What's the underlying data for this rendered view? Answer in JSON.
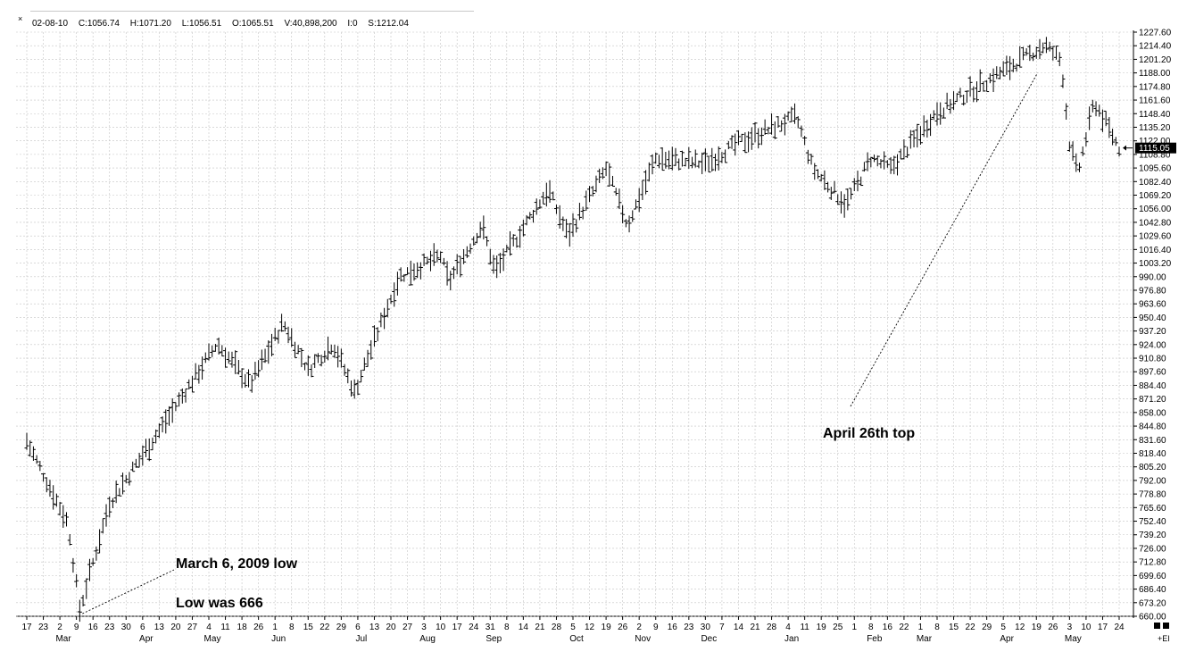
{
  "header": {
    "close_glyph": "×",
    "date": "02-08-10",
    "close": "C:1056.74",
    "high": "H:1071.20",
    "low": "L:1056.51",
    "open": "O:1065.51",
    "volume": "V:40,898,200",
    "interest": "I:0",
    "symbol_value": "S:1212.04"
  },
  "price_marker": "1115.05",
  "corner_label": "+EI",
  "chart_data": {
    "type": "ohlc",
    "ylim": [
      660,
      1227.6
    ],
    "y_ticks": [
      "1227.60",
      "1214.40",
      "1201.20",
      "1188.00",
      "1174.80",
      "1161.60",
      "1148.40",
      "1135.20",
      "1122.00",
      "1108.80",
      "1095.60",
      "1082.40",
      "1069.20",
      "1056.00",
      "1042.80",
      "1029.60",
      "1016.40",
      "1003.20",
      "990.00",
      "976.80",
      "963.60",
      "950.40",
      "937.20",
      "924.00",
      "910.80",
      "897.60",
      "884.40",
      "871.20",
      "858.00",
      "844.80",
      "831.60",
      "818.40",
      "805.20",
      "792.00",
      "778.80",
      "765.60",
      "752.40",
      "739.20",
      "726.00",
      "712.80",
      "699.60",
      "686.40",
      "673.20",
      "660.00"
    ],
    "x_ticks": [
      "17",
      "23",
      "2",
      "9",
      "16",
      "23",
      "30",
      "6",
      "13",
      "20",
      "27",
      "4",
      "11",
      "18",
      "26",
      "1",
      "8",
      "15",
      "22",
      "29",
      "6",
      "13",
      "20",
      "27",
      "3",
      "10",
      "17",
      "24",
      "31",
      "8",
      "14",
      "21",
      "28",
      "5",
      "12",
      "19",
      "26",
      "2",
      "9",
      "16",
      "23",
      "30",
      "7",
      "14",
      "21",
      "28",
      "4",
      "11",
      "19",
      "25",
      "1",
      "8",
      "16",
      "22",
      "1",
      "8",
      "15",
      "22",
      "29",
      "5",
      "12",
      "19",
      "26",
      "3",
      "10",
      "17",
      "24"
    ],
    "month_labels": [
      "Mar",
      "Apr",
      "May",
      "Jun",
      "Jul",
      "Aug",
      "Sep",
      "Oct",
      "Nov",
      "Dec",
      "Jan",
      "Feb",
      "Mar",
      "Apr",
      "May"
    ],
    "month_positions": [
      2,
      7,
      11,
      15,
      20,
      24,
      28,
      33,
      37,
      41,
      46,
      51,
      54,
      59,
      63
    ],
    "key_points": [
      {
        "week": 0,
        "value": 830
      },
      {
        "week": 2.5,
        "value": 750
      },
      {
        "week": 3.2,
        "value": 666
      },
      {
        "week": 5,
        "value": 770
      },
      {
        "week": 8,
        "value": 840
      },
      {
        "week": 11.5,
        "value": 925
      },
      {
        "week": 13.5,
        "value": 885
      },
      {
        "week": 15.5,
        "value": 945
      },
      {
        "week": 17,
        "value": 900
      },
      {
        "week": 18.5,
        "value": 925
      },
      {
        "week": 19.8,
        "value": 878
      },
      {
        "week": 22.5,
        "value": 990
      },
      {
        "week": 25,
        "value": 1010
      },
      {
        "week": 25.5,
        "value": 985
      },
      {
        "week": 27.5,
        "value": 1040
      },
      {
        "week": 28.3,
        "value": 995
      },
      {
        "week": 31.5,
        "value": 1075
      },
      {
        "week": 32.7,
        "value": 1030
      },
      {
        "week": 35,
        "value": 1095
      },
      {
        "week": 36.3,
        "value": 1040
      },
      {
        "week": 38,
        "value": 1105
      },
      {
        "week": 41,
        "value": 1100
      },
      {
        "week": 43,
        "value": 1120
      },
      {
        "week": 46.5,
        "value": 1145
      },
      {
        "week": 47.5,
        "value": 1095
      },
      {
        "week": 49.5,
        "value": 1060
      },
      {
        "week": 51,
        "value": 1105
      },
      {
        "week": 52.2,
        "value": 1095
      },
      {
        "week": 55,
        "value": 1150
      },
      {
        "week": 58,
        "value": 1180
      },
      {
        "week": 60.5,
        "value": 1205
      },
      {
        "week": 61.5,
        "value": 1215
      },
      {
        "week": 62.5,
        "value": 1200
      },
      {
        "week": 63,
        "value": 1120
      },
      {
        "week": 63.5,
        "value": 1090
      },
      {
        "week": 64.5,
        "value": 1160
      },
      {
        "week": 66,
        "value": 1115
      }
    ],
    "annotations": [
      {
        "text": "March 6, 2009 low"
      },
      {
        "text": "Low was 666"
      },
      {
        "text": "April 26th top"
      }
    ]
  }
}
